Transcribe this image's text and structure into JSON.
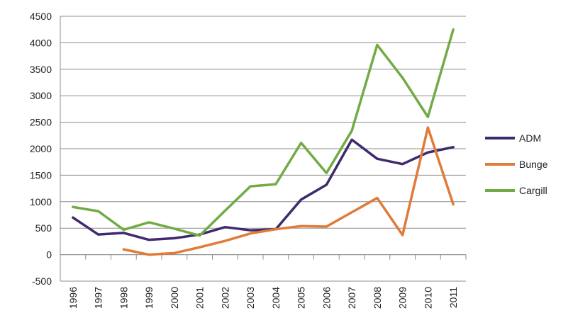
{
  "chart_data": {
    "type": "line",
    "title": "",
    "xlabel": "",
    "ylabel": "",
    "x": [
      "1996",
      "1997",
      "1998",
      "1999",
      "2000",
      "2001",
      "2002",
      "2003",
      "2004",
      "2005",
      "2006",
      "2007",
      "2008",
      "2009",
      "2010",
      "2011"
    ],
    "ylim": [
      -500,
      4500
    ],
    "yticks": [
      -500,
      0,
      500,
      1000,
      1500,
      2000,
      2500,
      3000,
      3500,
      4000,
      4500
    ],
    "ytick_labels": [
      "-500",
      "0",
      "500",
      "1000",
      "1500",
      "2000",
      "2500",
      "3000",
      "3500",
      "4000",
      "4500"
    ],
    "grid": true,
    "legend": "right",
    "series": [
      {
        "name": "ADM",
        "color": "#3f2a6e",
        "values": [
          700,
          380,
          410,
          280,
          310,
          380,
          520,
          460,
          480,
          1040,
          1320,
          2170,
          1810,
          1710,
          1930,
          2030
        ]
      },
      {
        "name": "Bunge",
        "color": "#e07b39",
        "values": [
          null,
          null,
          100,
          0,
          30,
          140,
          260,
          400,
          480,
          540,
          530,
          800,
          1070,
          370,
          2400,
          950
        ]
      },
      {
        "name": "Cargill",
        "color": "#72ab46",
        "values": [
          900,
          820,
          470,
          610,
          490,
          360,
          830,
          1290,
          1330,
          2110,
          1540,
          2340,
          3960,
          3340,
          2600,
          4250
        ]
      }
    ]
  }
}
